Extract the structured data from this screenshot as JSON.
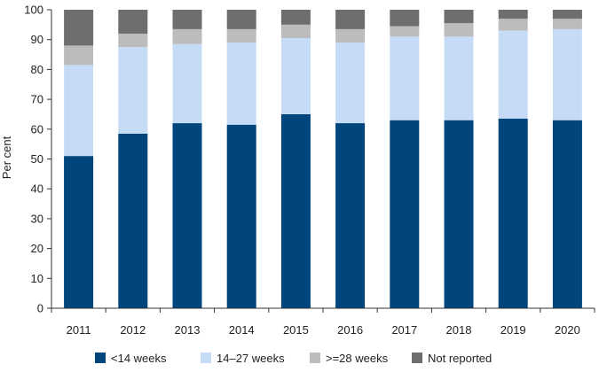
{
  "chart_data": {
    "type": "bar",
    "stacked": true,
    "title": "",
    "xlabel": "",
    "ylabel": "Per cent",
    "ylim": [
      0,
      100
    ],
    "yticks": [
      0,
      10,
      20,
      30,
      40,
      50,
      60,
      70,
      80,
      90,
      100
    ],
    "grid": false,
    "legend_position": "bottom",
    "categories": [
      "2011",
      "2012",
      "2013",
      "2014",
      "2015",
      "2016",
      "2017",
      "2018",
      "2019",
      "2020"
    ],
    "series": [
      {
        "name": "<14 weeks",
        "color": "#00457c",
        "values": [
          51,
          58.5,
          62,
          61.5,
          65,
          62,
          63,
          63,
          63.5,
          63
        ]
      },
      {
        "name": "14–27 weeks",
        "color": "#c6dcf6",
        "values": [
          30.5,
          29,
          26.5,
          27.5,
          25.5,
          27,
          28,
          28,
          29.5,
          30.5
        ]
      },
      {
        "name": ">=28 weeks",
        "color": "#bcbcbc",
        "values": [
          6.5,
          4.5,
          5,
          4.5,
          4.5,
          4.5,
          3.5,
          4.5,
          4,
          3.5
        ]
      },
      {
        "name": "Not reported",
        "color": "#6e6e6e",
        "values": [
          12,
          8,
          6.5,
          6.5,
          5,
          6.5,
          5.5,
          4.5,
          3,
          3
        ]
      }
    ]
  }
}
